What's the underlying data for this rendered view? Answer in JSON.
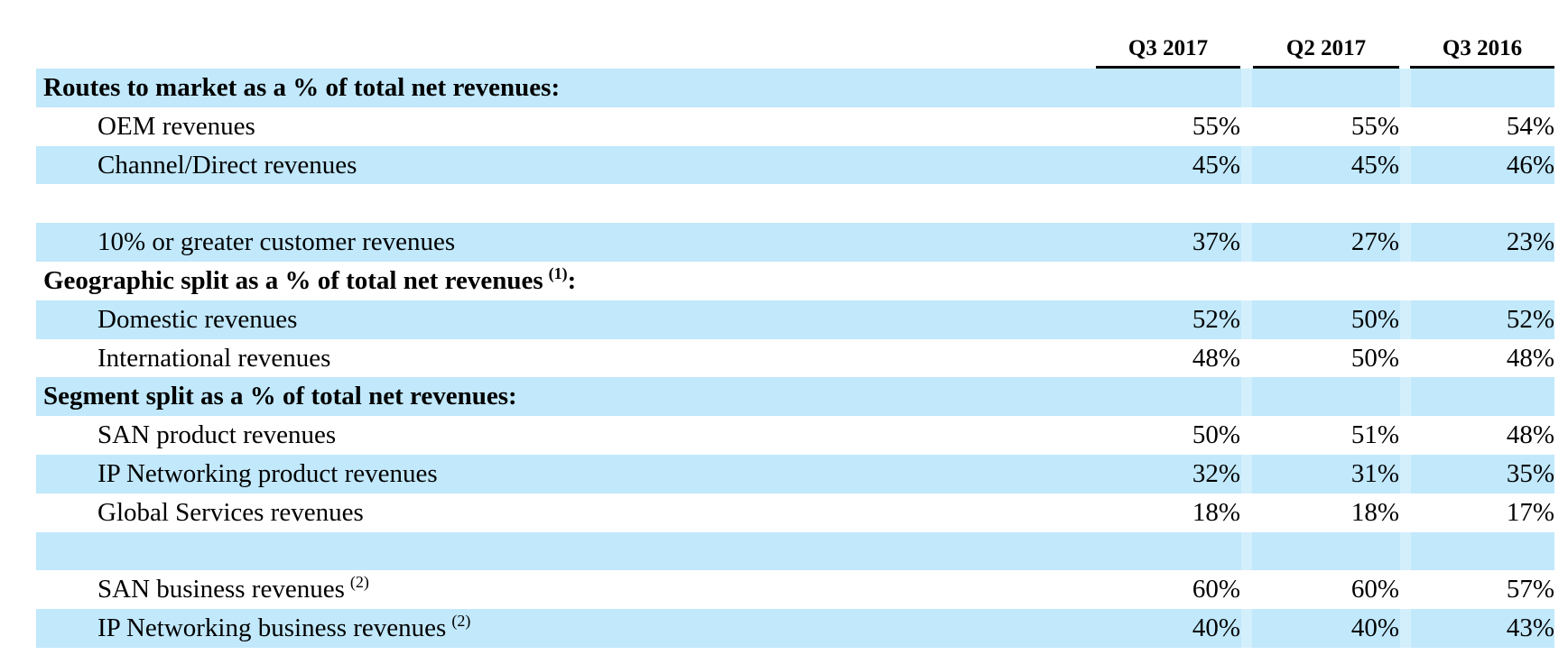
{
  "columns": [
    "Q3 2017",
    "Q2 2017",
    "Q3 2016"
  ],
  "rows": [
    {
      "type": "section",
      "label": "Routes to market as a % of total net revenues:",
      "sup": "",
      "suffix": "",
      "values": [
        "",
        "",
        ""
      ],
      "shaded": true
    },
    {
      "type": "item",
      "label": "OEM revenues",
      "sup": "",
      "suffix": "",
      "values": [
        "55%",
        "55%",
        "54%"
      ],
      "shaded": false
    },
    {
      "type": "item",
      "label": "Channel/Direct revenues",
      "sup": "",
      "suffix": "",
      "values": [
        "45%",
        "45%",
        "46%"
      ],
      "shaded": true
    },
    {
      "type": "blank",
      "label": "",
      "sup": "",
      "suffix": "",
      "values": [
        "",
        "",
        ""
      ],
      "shaded": false
    },
    {
      "type": "item",
      "label": "10% or greater customer revenues",
      "sup": "",
      "suffix": "",
      "values": [
        "37%",
        "27%",
        "23%"
      ],
      "shaded": true
    },
    {
      "type": "section",
      "label": "Geographic split as a % of total net revenues",
      "sup": "(1)",
      "suffix": ":",
      "values": [
        "",
        "",
        ""
      ],
      "shaded": false
    },
    {
      "type": "item",
      "label": "Domestic revenues",
      "sup": "",
      "suffix": "",
      "values": [
        "52%",
        "50%",
        "52%"
      ],
      "shaded": true
    },
    {
      "type": "item",
      "label": "International revenues",
      "sup": "",
      "suffix": "",
      "values": [
        "48%",
        "50%",
        "48%"
      ],
      "shaded": false
    },
    {
      "type": "section",
      "label": "Segment split as a % of total net revenues:",
      "sup": "",
      "suffix": "",
      "values": [
        "",
        "",
        ""
      ],
      "shaded": true
    },
    {
      "type": "item",
      "label": "SAN product revenues",
      "sup": "",
      "suffix": "",
      "values": [
        "50%",
        "51%",
        "48%"
      ],
      "shaded": false
    },
    {
      "type": "item",
      "label": "IP Networking product revenues",
      "sup": "",
      "suffix": "",
      "values": [
        "32%",
        "31%",
        "35%"
      ],
      "shaded": true
    },
    {
      "type": "item",
      "label": "Global Services revenues",
      "sup": "",
      "suffix": "",
      "values": [
        "18%",
        "18%",
        "17%"
      ],
      "shaded": false
    },
    {
      "type": "blank",
      "label": "",
      "sup": "",
      "suffix": "",
      "values": [
        "",
        "",
        ""
      ],
      "shaded": true
    },
    {
      "type": "item",
      "label": "SAN business revenues",
      "sup": "(2)",
      "suffix": "",
      "values": [
        "60%",
        "60%",
        "57%"
      ],
      "shaded": false
    },
    {
      "type": "item",
      "label": "IP Networking business revenues",
      "sup": "(2)",
      "suffix": "",
      "values": [
        "40%",
        "40%",
        "43%"
      ],
      "shaded": true
    }
  ]
}
